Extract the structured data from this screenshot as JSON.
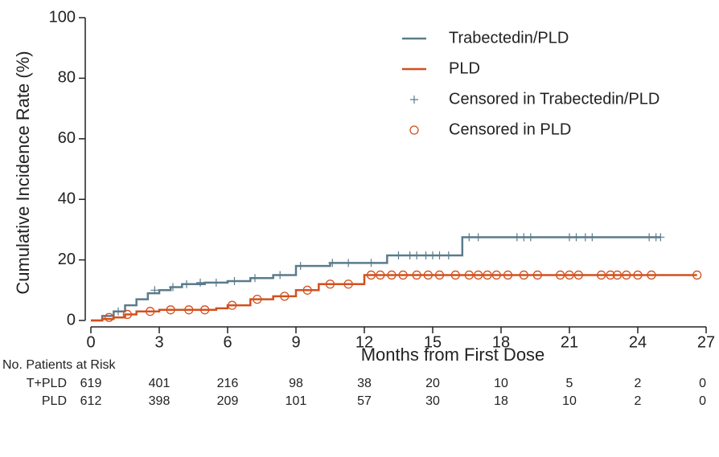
{
  "chart_data": {
    "type": "line",
    "step": true,
    "xlabel": "Months from First Dose",
    "ylabel": "Cumulative Incidence Rate (%)",
    "xlim": [
      0,
      27
    ],
    "xticks": [
      0,
      3,
      6,
      9,
      12,
      15,
      18,
      21,
      24,
      27
    ],
    "ylim": [
      0,
      100
    ],
    "yticks": [
      0,
      20,
      40,
      60,
      80,
      100
    ],
    "legend": "upper right",
    "series": [
      {
        "name": "Trabectedin/PLD",
        "color": "#5b7b8b",
        "style": "line",
        "x": [
          0,
          0.5,
          1,
          1.5,
          2,
          2.5,
          3,
          3.5,
          4,
          5,
          6,
          7,
          8,
          9,
          10.5,
          13,
          16.3,
          25
        ],
        "values": [
          0,
          1.5,
          3,
          5,
          7,
          9,
          10,
          11,
          12,
          12.5,
          13,
          14,
          15,
          18,
          19,
          21.5,
          27.5,
          27.5
        ]
      },
      {
        "name": "PLD",
        "color": "#d2501e",
        "style": "line",
        "x": [
          0,
          0.5,
          1,
          1.5,
          2,
          3,
          5.5,
          6,
          6.5,
          7,
          8,
          9,
          10,
          12,
          26.6
        ],
        "values": [
          0,
          0.5,
          1,
          2,
          3,
          3.5,
          4,
          5,
          5,
          7,
          8,
          10,
          12,
          15,
          15
        ]
      },
      {
        "name": "Censored in Trabectedin/PLD",
        "color": "#5b7b8b",
        "style": "plus",
        "x": [
          1.2,
          2.8,
          3.6,
          4.2,
          4.8,
          5.5,
          6.3,
          7.2,
          8.3,
          9.2,
          10.6,
          11.3,
          12.3,
          13.5,
          14,
          14.3,
          14.7,
          15,
          15.3,
          15.7,
          16.6,
          17,
          18.7,
          19,
          19.3,
          21,
          21.3,
          21.7,
          22,
          24.5,
          24.8,
          25
        ],
        "values": [
          3,
          10,
          11,
          12,
          12.5,
          12.5,
          13,
          14,
          15,
          18,
          19,
          19,
          19,
          21.5,
          21.5,
          21.5,
          21.5,
          21.5,
          21.5,
          21.5,
          27.5,
          27.5,
          27.5,
          27.5,
          27.5,
          27.5,
          27.5,
          27.5,
          27.5,
          27.5,
          27.5,
          27.5
        ]
      },
      {
        "name": "Censored in PLD",
        "color": "#d2501e",
        "style": "circle",
        "x": [
          0.8,
          1.6,
          2.6,
          3.5,
          4.3,
          5,
          6.2,
          7.3,
          8.5,
          9.5,
          10.5,
          11.3,
          12.3,
          12.7,
          13.2,
          13.7,
          14.3,
          14.8,
          15.3,
          16,
          16.6,
          17,
          17.4,
          17.8,
          18.3,
          19,
          19.6,
          20.6,
          21,
          21.4,
          22.4,
          22.8,
          23.1,
          23.5,
          24,
          24.6,
          26.6
        ],
        "values": [
          1,
          2,
          3,
          3.5,
          3.5,
          3.5,
          5,
          7,
          8,
          10,
          12,
          12,
          15,
          15,
          15,
          15,
          15,
          15,
          15,
          15,
          15,
          15,
          15,
          15,
          15,
          15,
          15,
          15,
          15,
          15,
          15,
          15,
          15,
          15,
          15,
          15,
          15
        ]
      }
    ],
    "risk_table": {
      "title": "No. Patients at Risk",
      "rows": [
        {
          "label": "T+PLD",
          "values": [
            619,
            401,
            216,
            98,
            38,
            20,
            10,
            5,
            2,
            0
          ]
        },
        {
          "label": "PLD",
          "values": [
            612,
            398,
            209,
            101,
            57,
            30,
            18,
            10,
            2,
            0
          ]
        }
      ]
    }
  }
}
